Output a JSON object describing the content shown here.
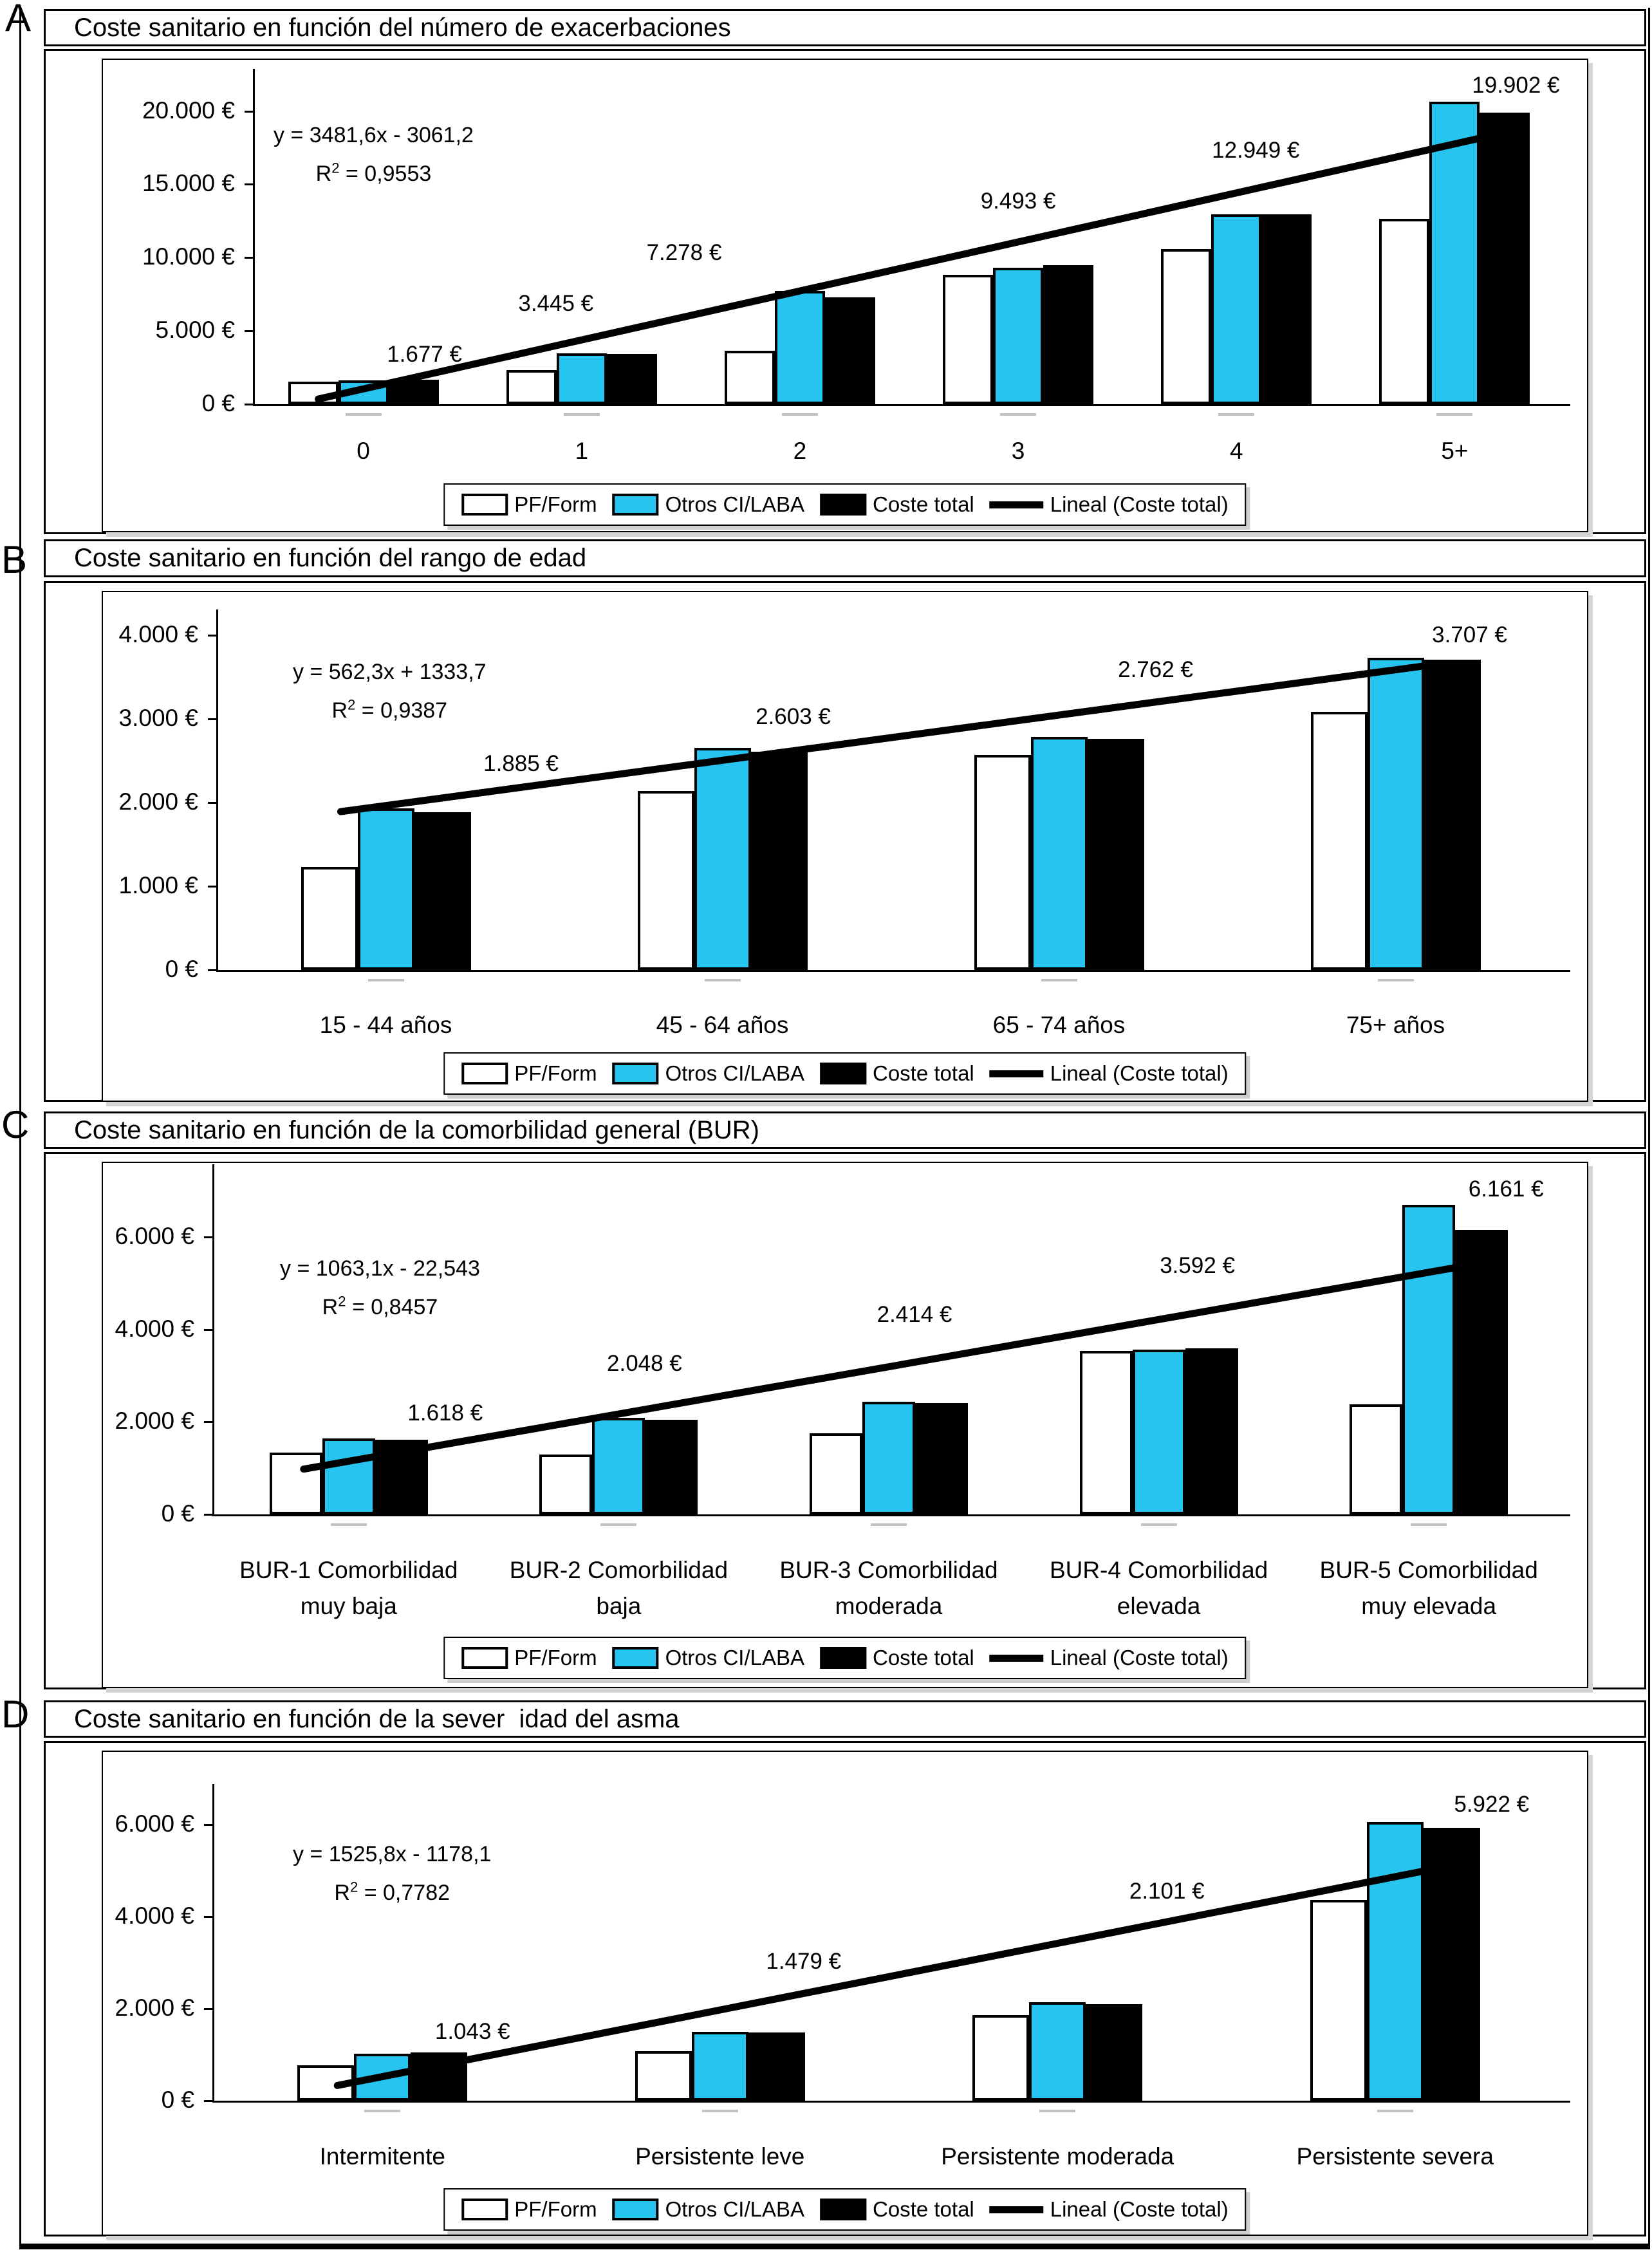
{
  "figure": {
    "background": "#ffffff",
    "colors": {
      "cyan": "#28C4F0",
      "black": "#000000",
      "white": "#ffffff"
    },
    "legend_items": [
      {
        "label": "PF/Form",
        "swatch": "white"
      },
      {
        "label": "Otros CI/LABA",
        "swatch": "cyan"
      },
      {
        "label": "Coste total",
        "swatch": "black"
      },
      {
        "label": "Lineal (Coste total)",
        "swatch": "line"
      }
    ]
  },
  "chart_data": [
    {
      "type": "bar",
      "letter": "A",
      "title": "Coste sanitario en función del número de exacerbaciones",
      "equation": "y = 3481,6x - 3061,2",
      "r2": {
        "base": "R",
        "exp": "2",
        "rest": "= 0,9553"
      },
      "categories": [
        "0",
        "1",
        "2",
        "3",
        "4",
        "5+"
      ],
      "series": [
        {
          "name": "PF/Form",
          "color": "white",
          "values": [
            1535,
            2320,
            3650,
            8830,
            10600,
            12630
          ]
        },
        {
          "name": "Otros CI/LABA",
          "color": "cyan",
          "values": [
            1610,
            3460,
            7750,
            9330,
            12960,
            20620
          ]
        },
        {
          "name": "Coste total",
          "color": "black",
          "values": [
            1677,
            3445,
            7278,
            9493,
            12949,
            19902
          ]
        }
      ],
      "point_labels": [
        "1.677 €",
        "3.445 €",
        "7.278 €",
        "9.493 €",
        "12.949 €",
        "19.902 €"
      ],
      "trendline": {
        "name": "Lineal (Coste total)",
        "start_value": 420,
        "end_value": 17828
      },
      "y_axis": {
        "ymax": 22000,
        "ticks": [
          {
            "v": 0,
            "label": "0 €"
          },
          {
            "v": 5000,
            "label": "5.000 €"
          },
          {
            "v": 10000,
            "label": "10.000 €"
          },
          {
            "v": 15000,
            "label": "15.000 €"
          },
          {
            "v": 20000,
            "label": "20.000 €"
          }
        ]
      }
    },
    {
      "type": "bar",
      "letter": "B",
      "title": "Coste sanitario en función del rango de edad",
      "equation": "y = 562,3x + 1333,7",
      "r2": {
        "base": "R",
        "exp": "2",
        "rest": "= 0,9387"
      },
      "categories": [
        "15 - 44 años",
        "45 - 64 años",
        "65 - 74 años",
        "75+ años"
      ],
      "series": [
        {
          "name": "PF/Form",
          "color": "white",
          "values": [
            1230,
            2135,
            2570,
            3080
          ]
        },
        {
          "name": "Otros CI/LABA",
          "color": "cyan",
          "values": [
            1930,
            2650,
            2780,
            3730
          ]
        },
        {
          "name": "Coste total",
          "color": "black",
          "values": [
            1885,
            2603,
            2762,
            3707
          ]
        }
      ],
      "point_labels": [
        "1.885 €",
        "2.603 €",
        "2.762 €",
        "3.707 €"
      ],
      "trendline": {
        "name": "Lineal (Coste total)",
        "start_value": 1896,
        "end_value": 3583
      },
      "y_axis": {
        "ymax": 4150,
        "ticks": [
          {
            "v": 0,
            "label": "0 €"
          },
          {
            "v": 1000,
            "label": "1.000 €"
          },
          {
            "v": 2000,
            "label": "2.000 €"
          },
          {
            "v": 3000,
            "label": "3.000 €"
          },
          {
            "v": 4000,
            "label": "4.000 €"
          }
        ]
      }
    },
    {
      "type": "bar",
      "letter": "C",
      "title": "Coste sanitario en función de la comorbilidad general (BUR)",
      "equation": "y = 1063,1x - 22,543",
      "r2": {
        "base": "R",
        "exp": "2",
        "rest": "= 0,8457"
      },
      "categories": [
        "BUR-1 Comorbilidad\nmuy baja",
        "BUR-2 Comorbilidad\nbaja",
        "BUR-3 Comorbilidad\nmoderada",
        "BUR-4 Comorbilidad\nelevada",
        "BUR-5 Comorbilidad\nmuy elevada"
      ],
      "series": [
        {
          "name": "PF/Form",
          "color": "white",
          "values": [
            1340,
            1300,
            1760,
            3540,
            2380
          ]
        },
        {
          "name": "Otros CI/LABA",
          "color": "cyan",
          "values": [
            1645,
            2090,
            2440,
            3570,
            6700
          ]
        },
        {
          "name": "Coste total",
          "color": "black",
          "values": [
            1618,
            2048,
            2414,
            3592,
            6161
          ]
        }
      ],
      "point_labels": [
        "1.618 €",
        "2.048 €",
        "2.414 €",
        "3.592 €",
        "6.161 €"
      ],
      "trendline": {
        "name": "Lineal (Coste total)",
        "start_value": 1040,
        "end_value": 5293
      },
      "y_axis": {
        "ymax": 7300,
        "ticks": [
          {
            "v": 0,
            "label": "0 €"
          },
          {
            "v": 2000,
            "label": "2.000 €"
          },
          {
            "v": 4000,
            "label": "4.000 €"
          },
          {
            "v": 6000,
            "label": "6.000 €"
          }
        ]
      }
    },
    {
      "type": "bar",
      "letter": "D",
      "title": "Coste sanitario en función de la sever  idad del asma",
      "equation": "y = 1525,8x - 1178,1",
      "r2": {
        "base": "R",
        "exp": "2",
        "rest": "= 0,7782"
      },
      "categories": [
        "Intermitente",
        "Persistente leve",
        "Persistente moderada",
        "Persistente severa"
      ],
      "series": [
        {
          "name": "PF/Form",
          "color": "white",
          "values": [
            770,
            1080,
            1860,
            4360
          ]
        },
        {
          "name": "Otros CI/LABA",
          "color": "cyan",
          "values": [
            1020,
            1490,
            2140,
            6050
          ]
        },
        {
          "name": "Coste total",
          "color": "black",
          "values": [
            1043,
            1479,
            2101,
            5922
          ]
        }
      ],
      "point_labels": [
        "1.043 €",
        "1.479 €",
        "2.101 €",
        "5.922 €"
      ],
      "trendline": {
        "name": "Lineal (Coste total)",
        "start_value": 348,
        "end_value": 4925
      },
      "y_axis": {
        "ymax": 6600,
        "ticks": [
          {
            "v": 0,
            "label": "0 €"
          },
          {
            "v": 2000,
            "label": "2.000 €"
          },
          {
            "v": 4000,
            "label": "4.000 €"
          },
          {
            "v": 6000,
            "label": "6.000 €"
          }
        ]
      }
    }
  ]
}
